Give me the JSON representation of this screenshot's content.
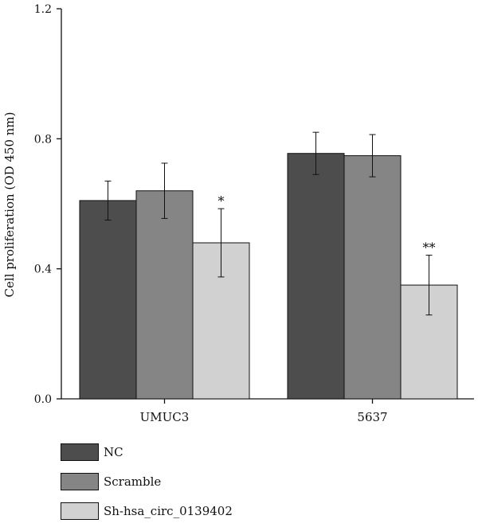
{
  "chart_data": {
    "type": "bar",
    "ylabel": "Cell proliferation (OD 450 nm)",
    "ylim": [
      0,
      1.2
    ],
    "yticks": [
      "0.0",
      "0.4",
      "0.8",
      "1.2"
    ],
    "categories": [
      "UMUC3",
      "5637"
    ],
    "series": [
      {
        "name": "NC",
        "color": "#4d4d4d",
        "values": [
          0.61,
          0.755
        ],
        "errors": [
          0.06,
          0.065
        ],
        "annotations": [
          "",
          ""
        ]
      },
      {
        "name": "Scramble",
        "color": "#858585",
        "values": [
          0.64,
          0.748
        ],
        "errors": [
          0.085,
          0.065
        ],
        "annotations": [
          "",
          ""
        ]
      },
      {
        "name": "Sh-hsa_circ_0139402",
        "color": "#d1d1d1",
        "values": [
          0.48,
          0.35
        ],
        "errors": [
          0.105,
          0.092
        ],
        "annotations": [
          "*",
          "**"
        ]
      }
    ],
    "legend_position": "bottom-left"
  }
}
